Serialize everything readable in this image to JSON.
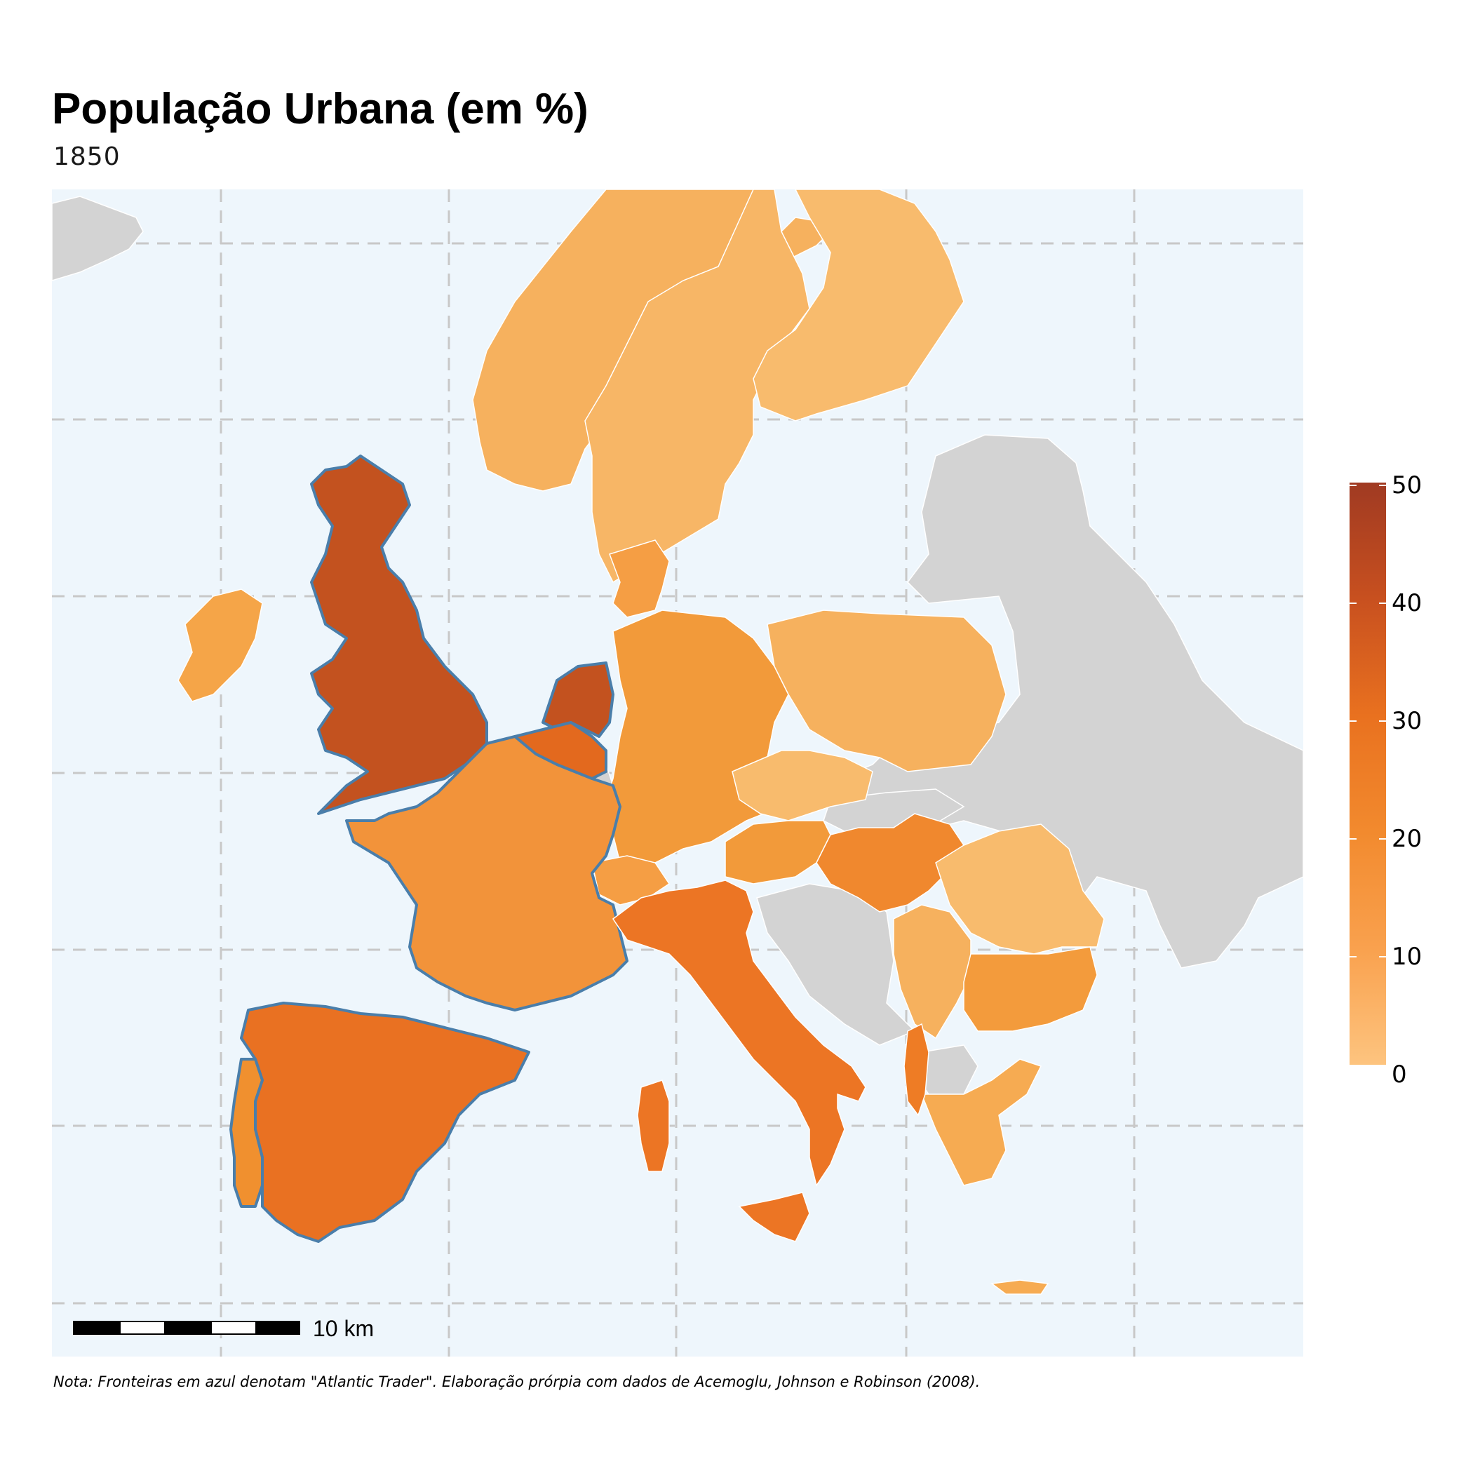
{
  "title": "População Urbana (em %)",
  "subtitle": "1850",
  "note": "Nota: Fronteiras em azul denotam \"Atlantic Trader\". Elaboração prórpia com dados de Acemoglu, Johnson e Robinson (2008).",
  "scale_bar": {
    "label": "10 km"
  },
  "legend": {
    "ticks": [
      "0",
      "10",
      "20",
      "30",
      "40",
      "50"
    ],
    "min": 0,
    "max": 50,
    "colors": [
      "#FDC47F",
      "#F9A14E",
      "#F28A2E",
      "#E9711F",
      "#C8501F",
      "#A03A22"
    ]
  },
  "colors": {
    "ocean": "#EEF6FC",
    "no_data": "#D3D3D3",
    "atlantic_border": "#4A7EAA",
    "country_border": "#ffffff",
    "grid": "#C8C8C8"
  },
  "chart_data": {
    "type": "choropleth",
    "variable": "urban population (%)",
    "year": "1850",
    "scale": [
      0,
      50
    ],
    "regions": [
      {
        "name": "United Kingdom",
        "value": 40,
        "atlantic_trader": true
      },
      {
        "name": "Netherlands",
        "value": 36,
        "atlantic_trader": true
      },
      {
        "name": "Belgium",
        "value": 28,
        "atlantic_trader": true
      },
      {
        "name": "Spain",
        "value": 27,
        "atlantic_trader": true
      },
      {
        "name": "Portugal",
        "value": 19,
        "atlantic_trader": true
      },
      {
        "name": "France",
        "value": 19,
        "atlantic_trader": true
      },
      {
        "name": "Ireland",
        "value": 14,
        "atlantic_trader": false
      },
      {
        "name": "Italy",
        "value": 26,
        "atlantic_trader": false
      },
      {
        "name": "Germany",
        "value": 17,
        "atlantic_trader": false
      },
      {
        "name": "Denmark",
        "value": 15,
        "atlantic_trader": false
      },
      {
        "name": "Norway",
        "value": 11,
        "atlantic_trader": false
      },
      {
        "name": "Sweden",
        "value": 10,
        "atlantic_trader": false
      },
      {
        "name": "Finland",
        "value": 8,
        "atlantic_trader": false
      },
      {
        "name": "Poland",
        "value": 10,
        "atlantic_trader": false
      },
      {
        "name": "Czech Republic",
        "value": 7,
        "atlantic_trader": false
      },
      {
        "name": "Austria",
        "value": 19,
        "atlantic_trader": false
      },
      {
        "name": "Switzerland",
        "value": 16,
        "atlantic_trader": false
      },
      {
        "name": "Hungary",
        "value": 22,
        "atlantic_trader": false
      },
      {
        "name": "Romania",
        "value": 8,
        "atlantic_trader": false
      },
      {
        "name": "Bulgaria",
        "value": 15,
        "atlantic_trader": false
      },
      {
        "name": "Serbia",
        "value": 10,
        "atlantic_trader": false
      },
      {
        "name": "Greece",
        "value": 12,
        "atlantic_trader": false
      },
      {
        "name": "Albania",
        "value": 24,
        "atlantic_trader": false
      }
    ]
  }
}
